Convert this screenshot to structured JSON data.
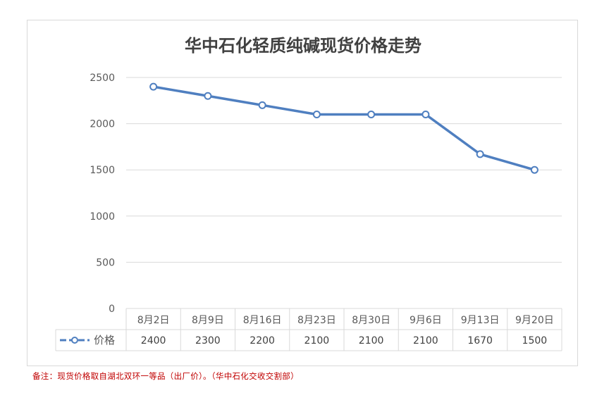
{
  "chart_data": {
    "type": "line",
    "title": "华中石化轻质纯碱现货价格走势",
    "categories": [
      "8月2日",
      "8月9日",
      "8月16日",
      "8月23日",
      "8月30日",
      "9月6日",
      "9月13日",
      "9月20日"
    ],
    "series": [
      {
        "name": "价格",
        "values": [
          2400,
          2300,
          2200,
          2100,
          2100,
          2100,
          1670,
          1500
        ]
      }
    ],
    "ylim": [
      0,
      2500
    ],
    "yticks": [
      "0",
      "500",
      "1000",
      "1500",
      "2000",
      "2500"
    ],
    "grid": true,
    "data_table": true,
    "colors": {
      "line": "#4f7fc0",
      "marker_fill": "#ffffff",
      "grid": "#d9d9d9",
      "axis_text": "#595959"
    }
  },
  "footnote": "备注：现货价格取自湖北双环一等品（出厂价）。（华中石化交收交割部）"
}
